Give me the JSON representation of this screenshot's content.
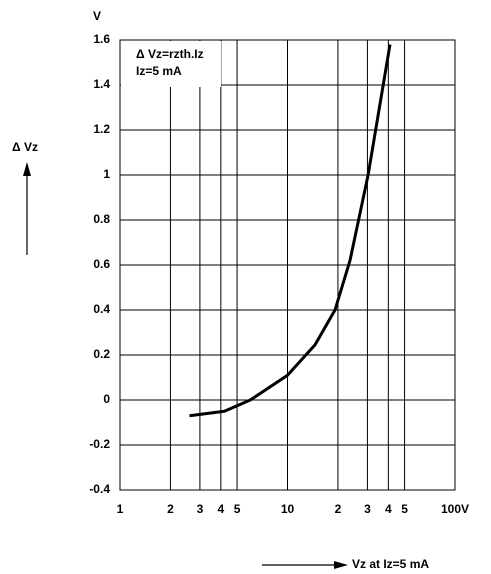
{
  "chart_data": {
    "type": "line",
    "y_unit_label": "V",
    "ylabel": "Δ Vz",
    "xlabel": "Vz at Iz=5 mA",
    "annotations": [
      "Δ Vz=rzth.Iz",
      "Iz=5 mA"
    ],
    "xscale": "log",
    "grid": true,
    "color": "#000000",
    "x": [
      2.6,
      4.2,
      6,
      10,
      14.6,
      19.2,
      23.6,
      30.3,
      40.9
    ],
    "values": [
      -0.07,
      -0.05,
      0,
      0.11,
      0.245,
      0.4,
      0.62,
      1.0,
      1.58
    ],
    "xlim": [
      1,
      100
    ],
    "ylim": [
      -0.4,
      1.6
    ],
    "xticks": [
      1,
      2,
      3,
      4,
      5,
      10,
      {
        "value": 20,
        "label": "2"
      },
      {
        "value": 30,
        "label": "3"
      },
      {
        "value": 40,
        "label": "4"
      },
      {
        "value": 50,
        "label": "5"
      },
      {
        "value": 100,
        "label": "100V"
      }
    ],
    "yticks": [
      -0.4,
      -0.2,
      0,
      0.2,
      0.4,
      0.6,
      0.8,
      1,
      1.2,
      1.4,
      1.6
    ]
  }
}
